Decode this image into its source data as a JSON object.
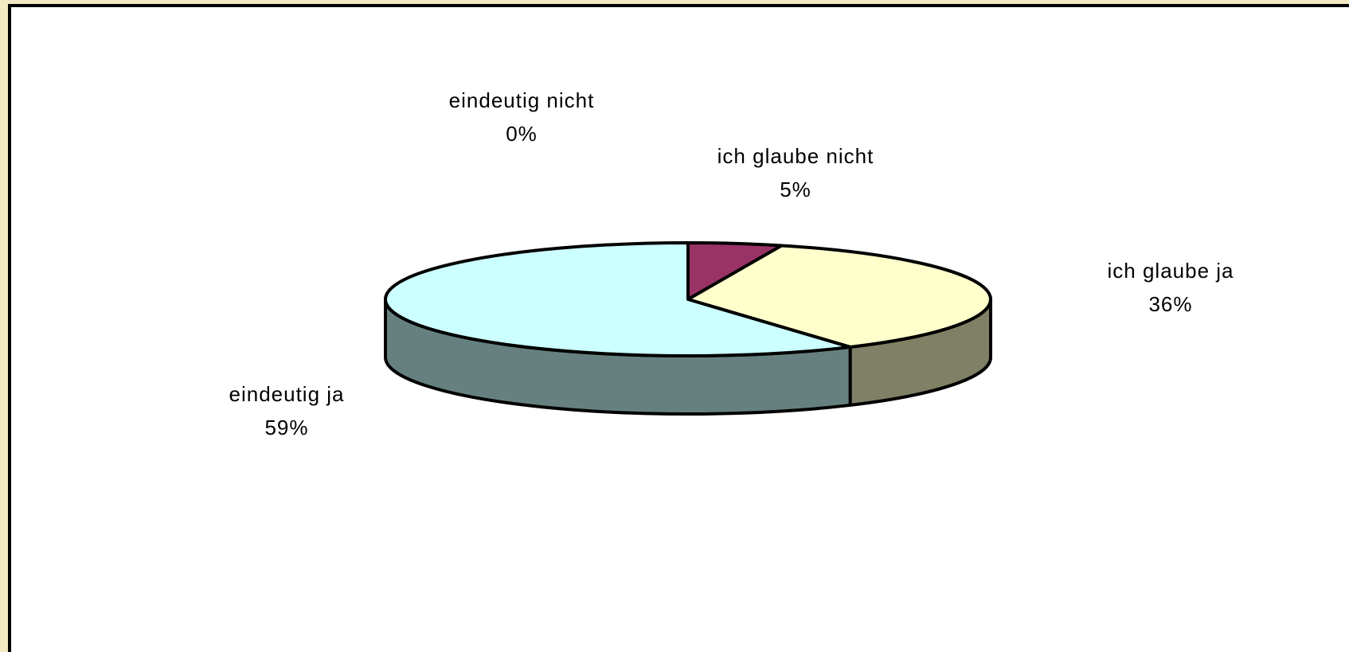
{
  "chart_data": {
    "type": "pie",
    "categories": [
      "eindeutig nicht",
      "ich glaube nicht",
      "ich glaube ja",
      "eindeutig ja"
    ],
    "values": [
      0,
      5,
      36,
      59
    ],
    "value_labels": [
      "0%",
      "5%",
      "36%",
      "59%"
    ],
    "colors": [
      "#9999ff",
      "#993366",
      "#ffffcc",
      "#ccffff"
    ]
  }
}
